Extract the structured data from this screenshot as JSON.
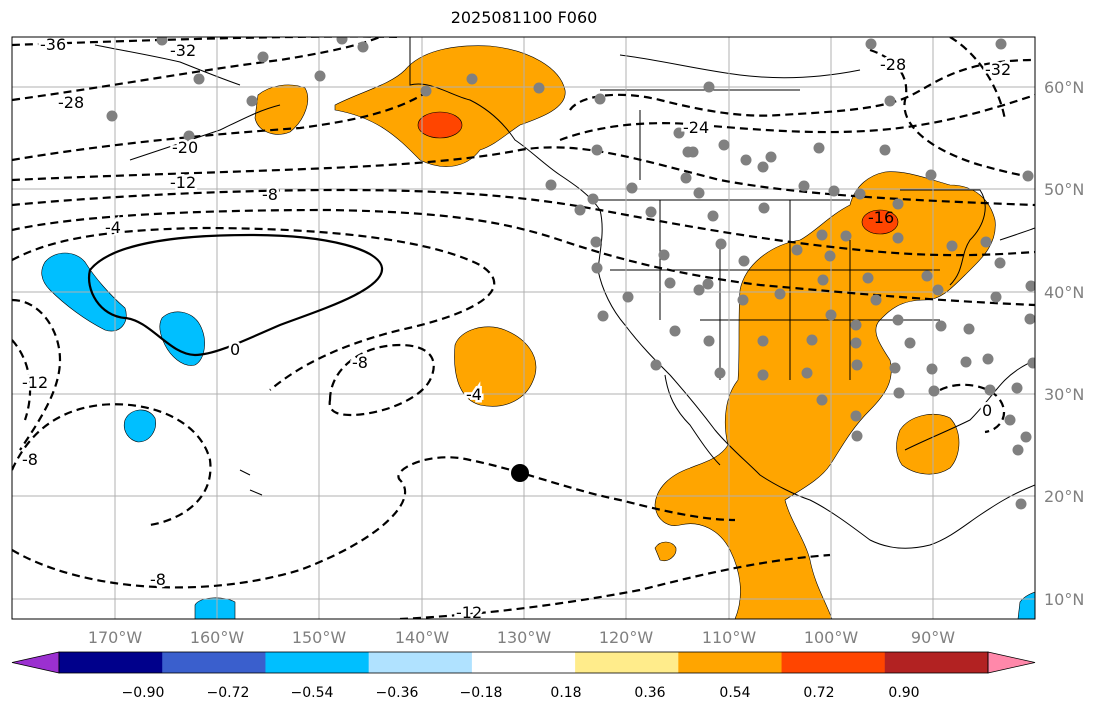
{
  "title": "2025081100 F060",
  "latitude_labels": [
    "60°N",
    "50°N",
    "40°N",
    "30°N",
    "20°N",
    "10°N"
  ],
  "longitude_labels": [
    "170°W",
    "160°W",
    "150°W",
    "140°W",
    "130°W",
    "120°W",
    "110°W",
    "100°W",
    "90°W"
  ],
  "contour_labels": [
    "-36",
    "-32",
    "-28",
    "-20",
    "-12",
    "-8",
    "-4",
    "0",
    "-8",
    "-4",
    "-12",
    "-8",
    "-8",
    "-12",
    "-24",
    "-28",
    "-32",
    "-16",
    "0"
  ],
  "colorbar": {
    "ticks": [
      "−0.90",
      "−0.72",
      "−0.54",
      "−0.36",
      "−0.18",
      "0.18",
      "0.36",
      "0.54",
      "0.72",
      "0.90"
    ],
    "colors": [
      "#9b30d0",
      "#00008b",
      "#3a5fcd",
      "#00bfff",
      "#b0e2ff",
      "#ffffff",
      "#ffec8b",
      "#ffa500",
      "#ff4500",
      "#b22222",
      "#ff88aa"
    ]
  },
  "colors": {
    "positive_fill": "#ffa500",
    "strong_positive_fill": "#ff4500",
    "negative_fill": "#00bfff",
    "station_dot": "#808080",
    "contour": "#000000",
    "grid": "#b0b0b0"
  },
  "marker": "filled-black-circle"
}
